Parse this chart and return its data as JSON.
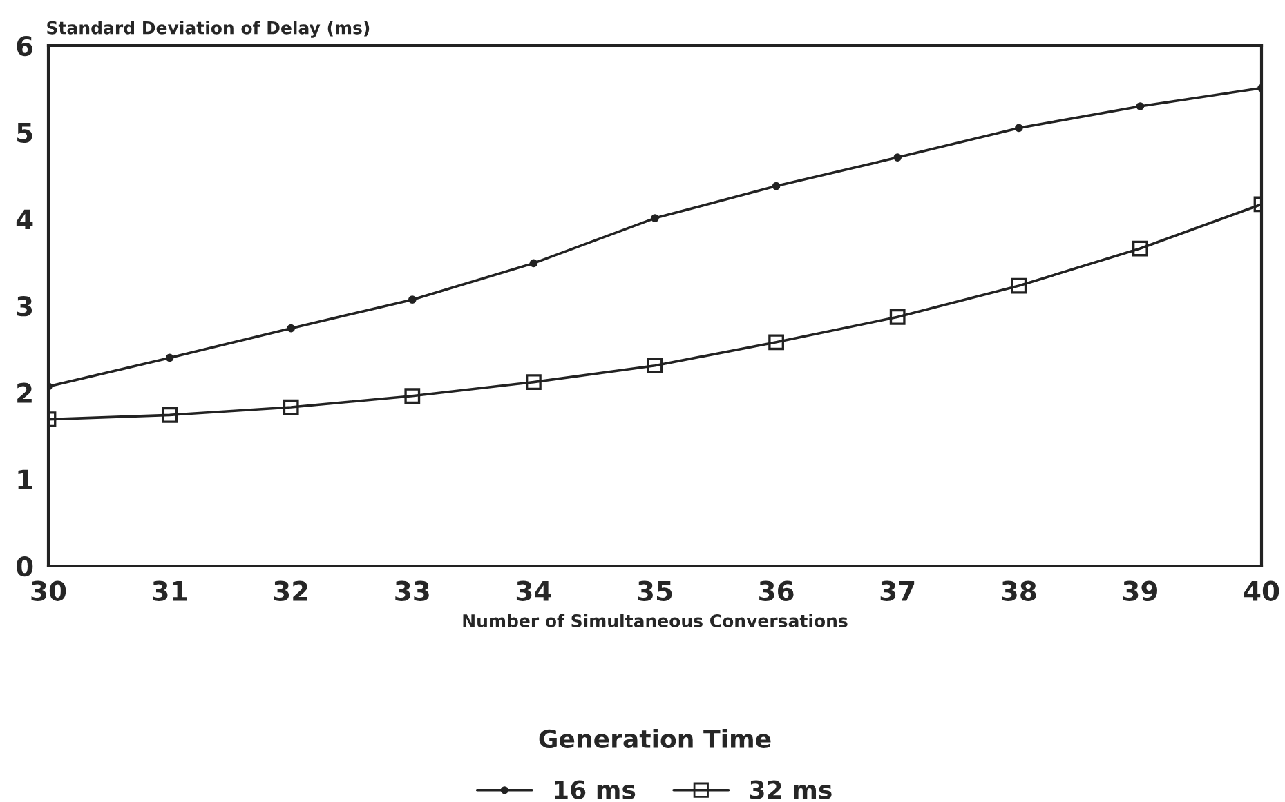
{
  "chart_data": {
    "type": "line",
    "ylabel": "Standard Deviation of Delay (ms)",
    "xlabel": "Number of Simultaneous Conversations",
    "legend_title": "Generation Time",
    "legend": "bottom",
    "x": [
      30,
      31,
      32,
      33,
      34,
      35,
      36,
      37,
      38,
      39,
      40
    ],
    "xlim": [
      30,
      40
    ],
    "xticks": [
      30,
      31,
      32,
      33,
      34,
      35,
      36,
      37,
      38,
      39,
      40
    ],
    "ylim": [
      0,
      6
    ],
    "yticks": [
      0,
      1,
      2,
      3,
      4,
      5,
      6
    ],
    "grid": false,
    "series": [
      {
        "name": "16 ms",
        "color": "#222222",
        "marker": "circle",
        "values": [
          2.07,
          2.4,
          2.74,
          3.07,
          3.49,
          4.01,
          4.38,
          4.71,
          5.05,
          5.3,
          5.51
        ]
      },
      {
        "name": "32 ms",
        "color": "#222222",
        "marker": "square",
        "values": [
          1.69,
          1.74,
          1.83,
          1.96,
          2.12,
          2.31,
          2.58,
          2.87,
          3.23,
          3.66,
          4.17
        ]
      }
    ]
  }
}
